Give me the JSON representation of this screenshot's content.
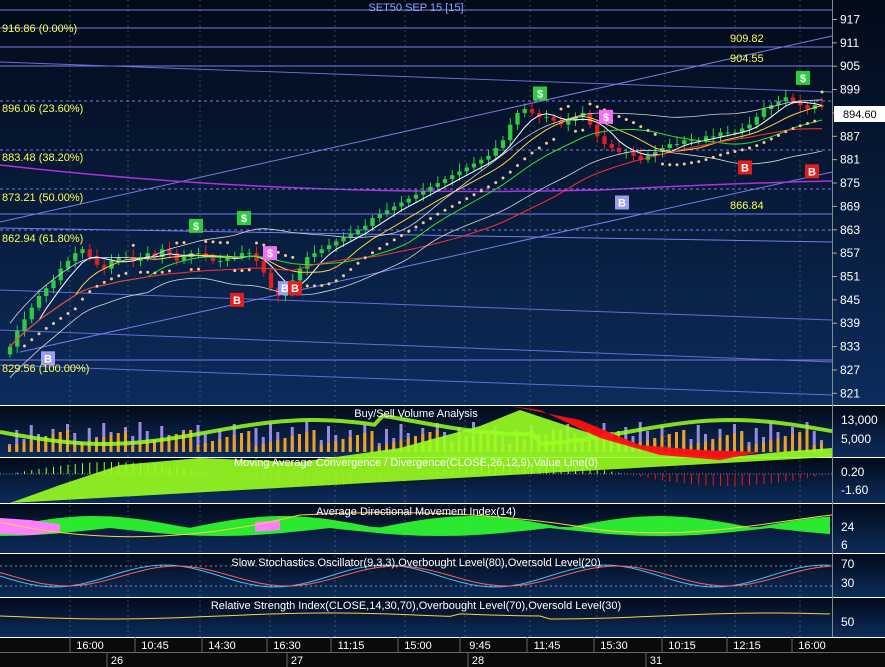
{
  "chart_data": [
    {
      "type": "candlestick",
      "title": "SET50 SEP 15   [15]",
      "yticks": [
        917,
        911,
        905,
        899,
        893,
        887,
        881,
        875,
        869,
        863,
        857,
        851,
        845,
        839,
        833,
        827,
        821
      ],
      "ylim": [
        818,
        922
      ],
      "last_price": "894.60",
      "fib_levels": [
        {
          "label": "916.86 (0.00%)",
          "value": 916.86
        },
        {
          "label": "896.06 (23.60%)",
          "value": 896.06
        },
        {
          "label": "883.48 (38.20%)",
          "value": 883.48
        },
        {
          "label": "873.21 (50.00%)",
          "value": 873.21
        },
        {
          "label": "862.94 (61.80%)",
          "value": 862.94
        },
        {
          "label": "829.56 (100.00%)",
          "value": 829.56
        }
      ],
      "price_annotations": [
        {
          "label": "909.82",
          "value": 909.82
        },
        {
          "label": "904.55",
          "value": 904.55
        },
        {
          "label": "866.84",
          "value": 866.84
        }
      ],
      "signals": [
        {
          "kind": "B",
          "time": "16:00",
          "price": 830
        },
        {
          "kind": "S",
          "time": "11:45",
          "price": 864
        },
        {
          "kind": "S",
          "time": "14:00",
          "price": 866
        },
        {
          "kind": "B",
          "time": "14:45",
          "price": 845
        },
        {
          "kind": "S",
          "time": "16:15",
          "price": 857
        },
        {
          "kind": "B",
          "time": "16:30",
          "price": 848
        },
        {
          "kind": "B",
          "time": "16:30",
          "price": 848
        },
        {
          "kind": "S",
          "time": "11:30",
          "price": 898
        },
        {
          "kind": "S",
          "time": "15:00",
          "price": 892
        },
        {
          "kind": "B",
          "time": "15:30",
          "price": 870
        },
        {
          "kind": "B",
          "time": "12:15",
          "price": 879
        },
        {
          "kind": "S",
          "time": "16:00",
          "price": 902
        },
        {
          "kind": "B",
          "time": "16:00",
          "price": 878
        }
      ],
      "closes": [
        833,
        837,
        840,
        843,
        846,
        848,
        850,
        853,
        855,
        857,
        858,
        856,
        854,
        853,
        855,
        856,
        856,
        855,
        856,
        857,
        856,
        858,
        857,
        855,
        856,
        857,
        857,
        856,
        855,
        855,
        856,
        856,
        857,
        857,
        855,
        852,
        848,
        846,
        847,
        850,
        853,
        856,
        857,
        858,
        859,
        860,
        861,
        862,
        863,
        864,
        866,
        867,
        868,
        869,
        870,
        871,
        872,
        873,
        874,
        875,
        876,
        877,
        878,
        879,
        880,
        881,
        882,
        884,
        886,
        890,
        893,
        894,
        893,
        892,
        892,
        891,
        890,
        891,
        892,
        893,
        890,
        887,
        885,
        884,
        883,
        883,
        882,
        881,
        882,
        883,
        884,
        885,
        885,
        886,
        886,
        886,
        887,
        887,
        888,
        888,
        888,
        889,
        890,
        892,
        894,
        895,
        896,
        897,
        896,
        895,
        894,
        895,
        894.6
      ]
    },
    {
      "type": "bar",
      "title": "Buy/Sell Volume Analysis",
      "yticks": [
        "13,000",
        "5,000"
      ]
    },
    {
      "type": "area",
      "title": "Moving Average Convergence / Divergence(CLOSE,26,12,9),Value Line(0)",
      "yticks": [
        "0.20",
        "-1.60"
      ]
    },
    {
      "type": "area",
      "title": "Average Directional Movement Index(14)",
      "yticks": [
        "24",
        "6"
      ]
    },
    {
      "type": "line",
      "title": "Slow Stochastics Oscillator(9,3,3),Overbought Level(80),Oversold Level(20)",
      "yticks": [
        "70",
        "30"
      ]
    },
    {
      "type": "line",
      "title": "Relative Strength Index(CLOSE,14,30,70),Overbought Level(70),Oversold Level(30)",
      "yticks": [
        "50"
      ]
    }
  ],
  "xaxis": {
    "times": [
      "16:00",
      "10:45",
      "14:30",
      "16:30",
      "11:15",
      "15:00",
      "9:45",
      "11:45",
      "15:30",
      "10:15",
      "12:15",
      "16:00"
    ],
    "dates": [
      "26",
      "27",
      "28",
      "31"
    ]
  },
  "colors": {
    "up": "#2ecc40",
    "down": "#e02020",
    "sar": "#f5c890",
    "signal_buy": "#e02020",
    "signal_sell": "#2ecc40",
    "signal_buy_alt": "#9c9cf0",
    "signal_sell_alt": "#f070f0",
    "volume_buy": "#9a8ae0",
    "volume_sell": "#f0a020",
    "macd": "#9aff20",
    "macd_neg": "#ff1010",
    "adx_pos": "#30ff30",
    "adx_neg": "#ff80ff"
  }
}
